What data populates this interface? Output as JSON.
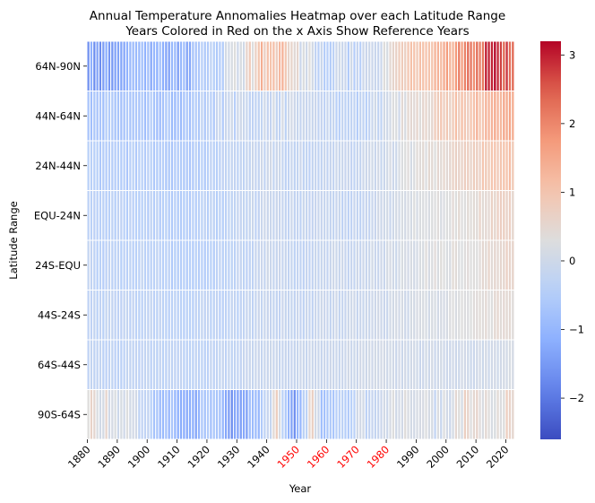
{
  "chart_data": {
    "type": "heatmap",
    "title": [
      "Annual Temperature Annomalies Heatmap over each Latitude Range",
      "Years Colored in Red on the x Axis Show Reference Years"
    ],
    "xlabel": "Year",
    "ylabel": "Latitude Range",
    "colormap": "coolwarm",
    "vmin": -2.6,
    "vmax": 3.2,
    "colorbar_ticks": [
      -2,
      -1,
      0,
      1,
      2,
      3
    ],
    "colorbar_tick_labels": [
      "−2",
      "−1",
      "0",
      "1",
      "2",
      "3"
    ],
    "x_start": 1880,
    "x_end": 2022,
    "x_ticks": [
      1880,
      1890,
      1900,
      1910,
      1920,
      1930,
      1940,
      1950,
      1960,
      1970,
      1980,
      1990,
      2000,
      2010,
      2020
    ],
    "x_tick_labels": [
      "1880",
      "1890",
      "1900",
      "1910",
      "1920",
      "1930",
      "1940",
      "1950",
      "1960",
      "1970",
      "1980",
      "1990",
      "2000",
      "2010",
      "2020"
    ],
    "reference_years": [
      1950,
      1960,
      1970,
      1980
    ],
    "reference_tick_color": "#ff0000",
    "rows": [
      "64N-90N",
      "44N-64N",
      "24N-44N",
      "EQU-24N",
      "24S-EQU",
      "44S-24S",
      "64S-44S",
      "90S-64S"
    ],
    "row_profiles": [
      {
        "name": "64N-90N",
        "anchors": [
          [
            1880,
            -1.3
          ],
          [
            1885,
            -1.5
          ],
          [
            1890,
            -1.1
          ],
          [
            1900,
            -1.0
          ],
          [
            1910,
            -1.1
          ],
          [
            1915,
            -1.0
          ],
          [
            1920,
            -0.6
          ],
          [
            1925,
            -0.2
          ],
          [
            1930,
            0.2
          ],
          [
            1935,
            0.6
          ],
          [
            1938,
            1.1
          ],
          [
            1940,
            0.8
          ],
          [
            1944,
            1.2
          ],
          [
            1950,
            0.2
          ],
          [
            1955,
            0.0
          ],
          [
            1960,
            -0.4
          ],
          [
            1965,
            -0.3
          ],
          [
            1970,
            -0.1
          ],
          [
            1975,
            -0.3
          ],
          [
            1980,
            0.3
          ],
          [
            1985,
            0.5
          ],
          [
            1990,
            0.9
          ],
          [
            1995,
            1.1
          ],
          [
            2000,
            1.4
          ],
          [
            2005,
            2.0
          ],
          [
            2010,
            2.2
          ],
          [
            2012,
            2.5
          ],
          [
            2016,
            3.2
          ],
          [
            2018,
            2.6
          ],
          [
            2020,
            2.7
          ],
          [
            2022,
            2.3
          ]
        ],
        "noise": 0.35
      },
      {
        "name": "44N-64N",
        "anchors": [
          [
            1880,
            -0.6
          ],
          [
            1890,
            -0.7
          ],
          [
            1900,
            -0.6
          ],
          [
            1910,
            -0.7
          ],
          [
            1920,
            -0.4
          ],
          [
            1930,
            -0.2
          ],
          [
            1940,
            0.0
          ],
          [
            1950,
            -0.1
          ],
          [
            1960,
            -0.2
          ],
          [
            1970,
            -0.3
          ],
          [
            1980,
            0.0
          ],
          [
            1990,
            0.5
          ],
          [
            2000,
            0.8
          ],
          [
            2010,
            1.1
          ],
          [
            2020,
            1.5
          ],
          [
            2022,
            1.3
          ]
        ],
        "noise": 0.25
      },
      {
        "name": "24N-44N",
        "anchors": [
          [
            1880,
            -0.5
          ],
          [
            1890,
            -0.5
          ],
          [
            1900,
            -0.5
          ],
          [
            1910,
            -0.6
          ],
          [
            1920,
            -0.4
          ],
          [
            1930,
            -0.3
          ],
          [
            1940,
            -0.1
          ],
          [
            1950,
            -0.2
          ],
          [
            1960,
            -0.2
          ],
          [
            1970,
            -0.2
          ],
          [
            1980,
            0.0
          ],
          [
            1990,
            0.3
          ],
          [
            2000,
            0.5
          ],
          [
            2010,
            0.8
          ],
          [
            2020,
            1.1
          ],
          [
            2022,
            1.0
          ]
        ],
        "noise": 0.15
      },
      {
        "name": "EQU-24N",
        "anchors": [
          [
            1880,
            -0.4
          ],
          [
            1890,
            -0.4
          ],
          [
            1900,
            -0.4
          ],
          [
            1910,
            -0.5
          ],
          [
            1920,
            -0.4
          ],
          [
            1930,
            -0.3
          ],
          [
            1940,
            -0.1
          ],
          [
            1950,
            -0.2
          ],
          [
            1960,
            -0.2
          ],
          [
            1970,
            -0.2
          ],
          [
            1980,
            0.0
          ],
          [
            1990,
            0.2
          ],
          [
            2000,
            0.3
          ],
          [
            2010,
            0.5
          ],
          [
            2020,
            0.7
          ],
          [
            2022,
            0.6
          ]
        ],
        "noise": 0.12
      },
      {
        "name": "24S-EQU",
        "anchors": [
          [
            1880,
            -0.3
          ],
          [
            1890,
            -0.4
          ],
          [
            1900,
            -0.3
          ],
          [
            1910,
            -0.5
          ],
          [
            1920,
            -0.4
          ],
          [
            1930,
            -0.3
          ],
          [
            1940,
            -0.1
          ],
          [
            1950,
            -0.2
          ],
          [
            1960,
            -0.1
          ],
          [
            1970,
            -0.1
          ],
          [
            1980,
            0.0
          ],
          [
            1990,
            0.2
          ],
          [
            2000,
            0.3
          ],
          [
            2010,
            0.4
          ],
          [
            2020,
            0.6
          ],
          [
            2022,
            0.5
          ]
        ],
        "noise": 0.12
      },
      {
        "name": "44S-24S",
        "anchors": [
          [
            1880,
            -0.3
          ],
          [
            1890,
            -0.3
          ],
          [
            1900,
            -0.3
          ],
          [
            1910,
            -0.4
          ],
          [
            1920,
            -0.3
          ],
          [
            1930,
            -0.3
          ],
          [
            1940,
            -0.1
          ],
          [
            1950,
            -0.2
          ],
          [
            1960,
            -0.1
          ],
          [
            1970,
            -0.1
          ],
          [
            1980,
            0.0
          ],
          [
            1990,
            0.1
          ],
          [
            2000,
            0.2
          ],
          [
            2010,
            0.3
          ],
          [
            2020,
            0.5
          ],
          [
            2022,
            0.4
          ]
        ],
        "noise": 0.1
      },
      {
        "name": "64S-44S",
        "anchors": [
          [
            1880,
            -0.3
          ],
          [
            1890,
            -0.3
          ],
          [
            1900,
            -0.3
          ],
          [
            1910,
            -0.3
          ],
          [
            1920,
            -0.3
          ],
          [
            1930,
            -0.2
          ],
          [
            1940,
            -0.1
          ],
          [
            1950,
            -0.1
          ],
          [
            1960,
            -0.1
          ],
          [
            1970,
            0.0
          ],
          [
            1980,
            0.0
          ],
          [
            1990,
            0.0
          ],
          [
            2000,
            0.0
          ],
          [
            2010,
            0.0
          ],
          [
            2020,
            0.1
          ],
          [
            2022,
            0.1
          ]
        ],
        "noise": 0.08
      },
      {
        "name": "90S-64S",
        "anchors": [
          [
            1880,
            0.4
          ],
          [
            1885,
            0.3
          ],
          [
            1890,
            0.2
          ],
          [
            1895,
            0.0
          ],
          [
            1900,
            -0.2
          ],
          [
            1904,
            -1.0
          ],
          [
            1908,
            -0.8
          ],
          [
            1912,
            -1.0
          ],
          [
            1916,
            -1.1
          ],
          [
            1920,
            -0.6
          ],
          [
            1925,
            -0.9
          ],
          [
            1928,
            -1.8
          ],
          [
            1930,
            -1.4
          ],
          [
            1935,
            -1.0
          ],
          [
            1940,
            -0.4
          ],
          [
            1943,
            0.9
          ],
          [
            1946,
            -0.8
          ],
          [
            1949,
            -1.4
          ],
          [
            1952,
            -0.6
          ],
          [
            1955,
            0.7
          ],
          [
            1958,
            -0.6
          ],
          [
            1962,
            -0.4
          ],
          [
            1970,
            -0.2
          ],
          [
            1980,
            0.0
          ],
          [
            1990,
            0.1
          ],
          [
            2000,
            0.0
          ],
          [
            2007,
            0.6
          ],
          [
            2010,
            0.3
          ],
          [
            2015,
            0.4
          ],
          [
            2020,
            0.5
          ],
          [
            2022,
            0.7
          ]
        ],
        "noise": 0.3
      }
    ]
  }
}
